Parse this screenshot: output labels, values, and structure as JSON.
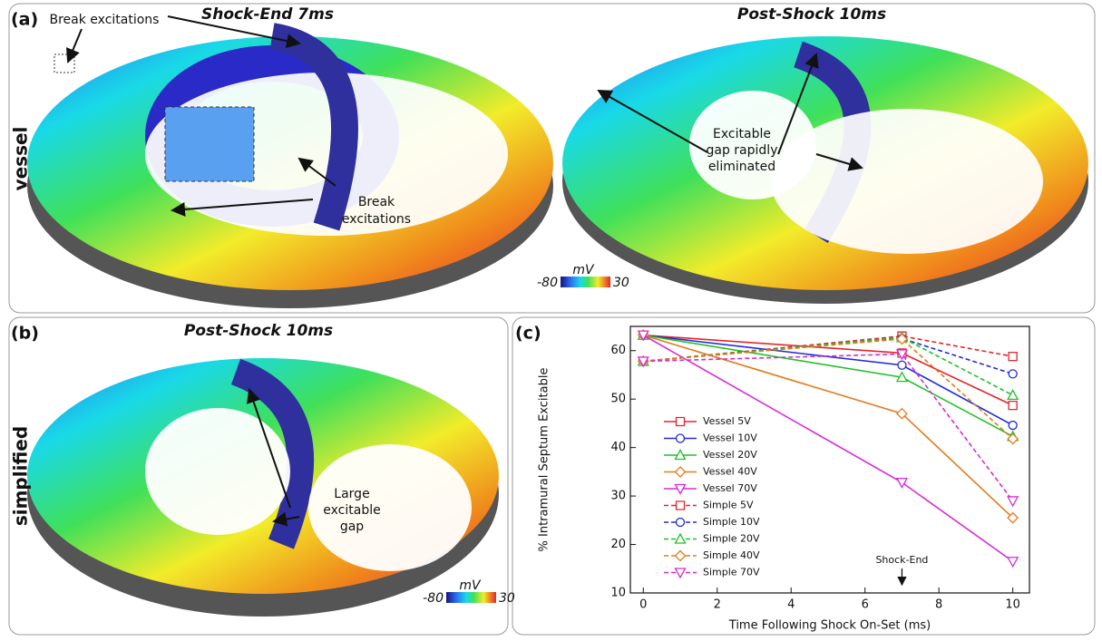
{
  "panel_a": {
    "label": "(a)",
    "title_left": "Shock-End 7ms",
    "title_right": "Post-Shock 10ms",
    "side_label": "vessel",
    "annotation_break_top": "Break excitations",
    "annotation_break_bottom": [
      "Break",
      "excitations"
    ],
    "annotation_gap": [
      "Excitable",
      "gap rapidly",
      "eliminated"
    ],
    "colorbar": {
      "unit": "mV",
      "min": -80,
      "max": 30
    }
  },
  "panel_b": {
    "label": "(b)",
    "title": "Post-Shock 10ms",
    "side_label": "simplified",
    "annotation_gap": [
      "Large",
      "excitable",
      "gap"
    ],
    "colorbar": {
      "unit": "mV",
      "min": -80,
      "max": 30
    }
  },
  "panel_c": {
    "label": "(c)"
  },
  "chart_data": {
    "type": "line",
    "x": [
      0,
      7,
      10
    ],
    "xlabel": "Time Following Shock On-Set (ms)",
    "ylabel": "% Intramural Septum Excitable",
    "xlim": [
      -0.35,
      10.45
    ],
    "ylim": [
      10,
      65
    ],
    "xticks": [
      0,
      2,
      4,
      6,
      8,
      10
    ],
    "yticks": [
      10,
      20,
      30,
      40,
      50,
      60
    ],
    "annotation": {
      "text": "Shock-End",
      "x": 7
    },
    "series": [
      {
        "name": "Vessel 5V",
        "color": "#e0262b",
        "marker": "square",
        "linestyle": "solid",
        "values": [
          63.2,
          59.5,
          48.7
        ]
      },
      {
        "name": "Vessel 10V",
        "color": "#1f2bd6",
        "marker": "circle",
        "linestyle": "solid",
        "values": [
          63.2,
          57,
          44.6
        ]
      },
      {
        "name": "Vessel 20V",
        "color": "#22c02a",
        "marker": "triangle-up",
        "linestyle": "solid",
        "values": [
          63.2,
          54.5,
          42.3
        ]
      },
      {
        "name": "Vessel 40V",
        "color": "#e27b1a",
        "marker": "diamond",
        "linestyle": "solid",
        "values": [
          63.2,
          47,
          25.5
        ]
      },
      {
        "name": "Vessel 70V",
        "color": "#d62bd6",
        "marker": "triangle-down",
        "linestyle": "solid",
        "values": [
          63.2,
          32.8,
          16.5
        ]
      },
      {
        "name": "Simple 5V",
        "color": "#e0262b",
        "marker": "square",
        "linestyle": "dashed",
        "values": [
          57.8,
          63,
          58.8
        ]
      },
      {
        "name": "Simple 10V",
        "color": "#1f2bd6",
        "marker": "circle",
        "linestyle": "dashed",
        "values": [
          57.8,
          62.5,
          55.2
        ]
      },
      {
        "name": "Simple 20V",
        "color": "#22c02a",
        "marker": "triangle-up",
        "linestyle": "dashed",
        "values": [
          57.8,
          62.7,
          50.8
        ]
      },
      {
        "name": "Simple 40V",
        "color": "#e27b1a",
        "marker": "diamond",
        "linestyle": "dashed",
        "values": [
          57.8,
          62.4,
          41.8
        ]
      },
      {
        "name": "Simple 70V",
        "color": "#d62bd6",
        "marker": "triangle-down",
        "linestyle": "dashed",
        "values": [
          57.8,
          59.3,
          29
        ]
      }
    ]
  }
}
